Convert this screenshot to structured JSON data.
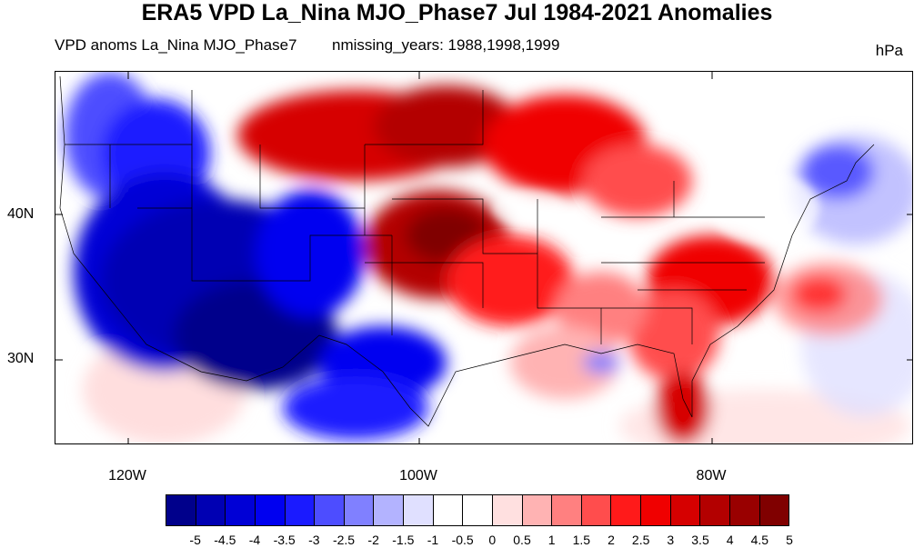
{
  "title": "ERA5 VPD La_Nina MJO_Phase7 Jul 1984-2021 Anomalies",
  "subtitle_left": "VPD anoms La_Nina MJO_Phase7",
  "subtitle_right": "nmissing_years: 1988,1998,1999",
  "units": "hPa",
  "lat_labels": [
    "40N",
    "30N"
  ],
  "lon_labels": [
    "120W",
    "100W",
    "80W"
  ],
  "colorbar": {
    "colors": [
      "#00008b",
      "#0000b3",
      "#0000d6",
      "#0000f0",
      "#1a1aff",
      "#4d4dff",
      "#8080ff",
      "#b3b3ff",
      "#e0e0ff",
      "#ffffff",
      "#ffffff",
      "#ffe0e0",
      "#ffb3b3",
      "#ff8080",
      "#ff4d4d",
      "#ff1a1a",
      "#f00000",
      "#d60000",
      "#b30000",
      "#990000",
      "#800000"
    ],
    "labels": [
      "-5",
      "-4.5",
      "-4",
      "-3.5",
      "-3",
      "-2.5",
      "-2",
      "-1.5",
      "-1",
      "-0.5",
      "0",
      "0.5",
      "1",
      "1.5",
      "2",
      "2.5",
      "3",
      "3.5",
      "4",
      "4.5",
      "5"
    ]
  }
}
